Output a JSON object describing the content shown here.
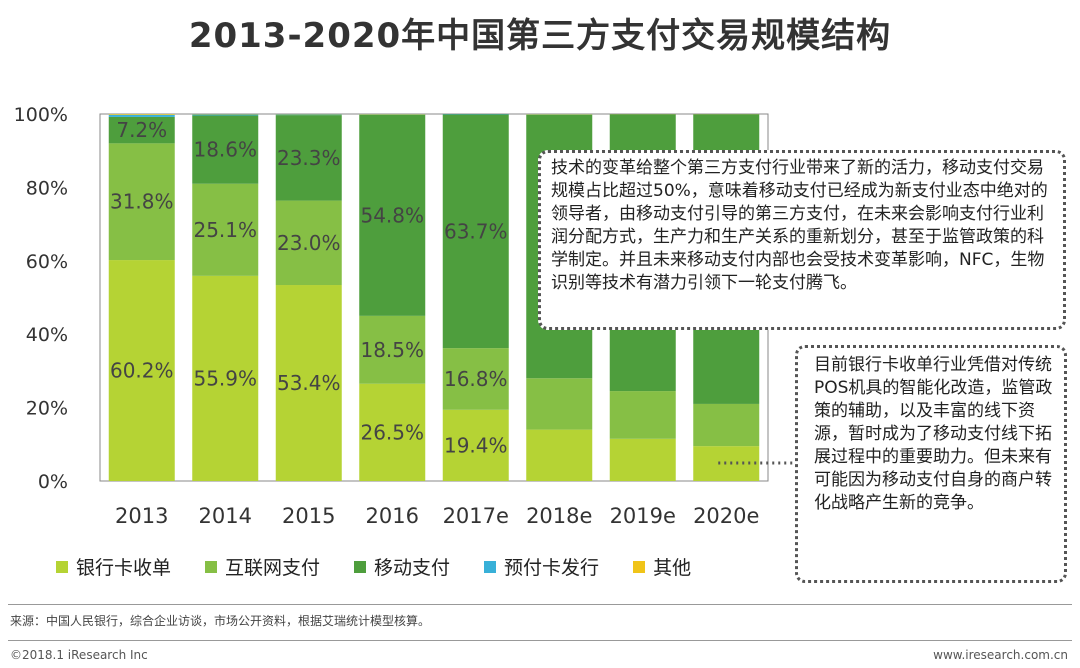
{
  "title": "2013-2020年中国第三方支付交易规模结构",
  "chart_data": {
    "type": "bar",
    "stacked": true,
    "title": "2013-2020年中国第三方支付交易规模结构",
    "categories": [
      "2013",
      "2014",
      "2015",
      "2016",
      "2017e",
      "2018e",
      "2019e",
      "2020e"
    ],
    "ylim": [
      0,
      100
    ],
    "yticks": [
      "0%",
      "20%",
      "40%",
      "60%",
      "80%",
      "100%"
    ],
    "series": [
      {
        "name": "银行卡收单",
        "color": "#b5d334",
        "values": [
          60.2,
          55.9,
          53.4,
          26.5,
          19.4,
          14.0,
          11.5,
          9.5
        ],
        "labels": [
          "60.2%",
          "55.9%",
          "53.4%",
          "26.5%",
          "19.4%",
          "",
          "",
          ""
        ]
      },
      {
        "name": "互联网支付",
        "color": "#86bf45",
        "values": [
          31.8,
          25.1,
          23.0,
          18.5,
          16.8,
          14.0,
          13.0,
          11.5
        ],
        "labels": [
          "31.8%",
          "25.1%",
          "23.0%",
          "18.5%",
          "16.8%",
          "",
          "",
          ""
        ]
      },
      {
        "name": "移动支付",
        "color": "#4e9e3d",
        "values": [
          7.2,
          18.6,
          23.3,
          54.8,
          63.7,
          71.8,
          75.4,
          78.9
        ],
        "labels": [
          "7.2%",
          "18.6%",
          "23.3%",
          "54.8%",
          "63.7%",
          "",
          "",
          ""
        ]
      },
      {
        "name": "预付卡发行",
        "color": "#38b0d8",
        "values": [
          0.6,
          0.3,
          0.2,
          0.1,
          0.1,
          0.1,
          0.05,
          0.05
        ],
        "labels": [
          "",
          "",
          "",
          "",
          "",
          "",
          "",
          ""
        ]
      },
      {
        "name": "其他",
        "color": "#f0c419",
        "values": [
          0.2,
          0.1,
          0.1,
          0.1,
          0.0,
          0.1,
          0.05,
          0.05
        ],
        "labels": [
          "",
          "",
          "",
          "",
          "",
          "",
          "",
          ""
        ]
      }
    ]
  },
  "notes": {
    "note1": "技术的变革给整个第三方支付行业带来了新的活力，移动支付交易规模占比超过50%，意味着移动支付已经成为新支付业态中绝对的领导者，由移动支付引导的第三方支付，在未来会影响支付行业利润分配方式，生产力和生产关系的重新划分，甚至于监管政策的科学制定。并且未来移动支付内部也会受技术变革影响，NFC，生物识别等技术有潜力引领下一轮支付腾飞。",
    "note2": "目前银行卡收单行业凭借对传统POS机具的智能化改造，监管政策的辅助，以及丰富的线下资源，暂时成为了移动支付线下拓展过程中的重要助力。但未来有可能因为移动支付自身的商户转化战略产生新的竞争。"
  },
  "footer": {
    "source": "来源：中国人民银行，综合企业访谈，市场公开资料，根据艾瑞统计模型核算。",
    "copyright": "©2018.1 iResearch Inc",
    "website": "www.iresearch.com.cn"
  }
}
